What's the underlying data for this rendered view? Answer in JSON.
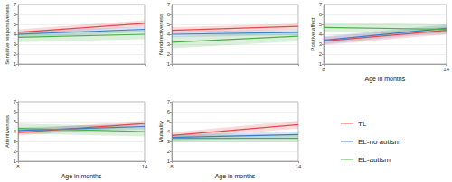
{
  "chart_data": [
    {
      "type": "line",
      "y_label": "Sensitive responsiveness",
      "x": [
        8,
        14
      ],
      "xlim": [
        8,
        14
      ],
      "xticks": [
        8,
        14
      ],
      "ylim": [
        1,
        7
      ],
      "yticks": [
        1,
        2,
        3,
        4,
        5,
        6,
        7
      ],
      "grid": true,
      "tick_labels": "y",
      "legend": "right",
      "series": [
        {
          "name": "TL",
          "color": "#e5484a",
          "values": [
            4.2,
            5.1
          ],
          "lower": [
            3.9,
            4.8
          ],
          "upper": [
            4.5,
            5.4
          ]
        },
        {
          "name": "EL-no autism",
          "color": "#3b7dc9",
          "values": [
            4.0,
            4.5
          ],
          "lower": [
            3.7,
            4.2
          ],
          "upper": [
            4.3,
            4.8
          ]
        },
        {
          "name": "EL-autism",
          "color": "#4daf4a",
          "values": [
            3.7,
            4.0
          ],
          "lower": [
            3.2,
            3.5
          ],
          "upper": [
            4.2,
            4.5
          ]
        }
      ]
    },
    {
      "type": "line",
      "y_label": "Nondirectiveness",
      "x": [
        8,
        14
      ],
      "xlim": [
        8,
        14
      ],
      "xticks": [
        8,
        14
      ],
      "ylim": [
        1,
        7
      ],
      "yticks": [
        1,
        2,
        3,
        4,
        5,
        6,
        7
      ],
      "grid": true,
      "tick_labels": "y",
      "series": [
        {
          "name": "TL",
          "color": "#e5484a",
          "values": [
            4.4,
            4.8
          ],
          "lower": [
            4.1,
            4.5
          ],
          "upper": [
            4.7,
            5.1
          ]
        },
        {
          "name": "EL-no autism",
          "color": "#3b7dc9",
          "values": [
            4.0,
            4.2
          ],
          "lower": [
            3.7,
            3.9
          ],
          "upper": [
            4.3,
            4.5
          ]
        },
        {
          "name": "EL-autism",
          "color": "#4daf4a",
          "values": [
            3.2,
            3.8
          ],
          "lower": [
            2.6,
            3.3
          ],
          "upper": [
            3.8,
            4.3
          ]
        }
      ]
    },
    {
      "type": "line",
      "y_label": "Positive affect",
      "x_label": "Age in months",
      "x": [
        8,
        14
      ],
      "xlim": [
        8,
        14
      ],
      "xticks": [
        8,
        14
      ],
      "ylim": [
        1,
        7
      ],
      "yticks": [
        1,
        2,
        3,
        4,
        5,
        6,
        7
      ],
      "grid": true,
      "series": [
        {
          "name": "TL",
          "color": "#e5484a",
          "values": [
            3.3,
            4.4
          ],
          "lower": [
            2.9,
            4.0
          ],
          "upper": [
            3.7,
            4.8
          ]
        },
        {
          "name": "EL-no autism",
          "color": "#3b7dc9",
          "values": [
            3.4,
            4.6
          ],
          "lower": [
            3.0,
            4.2
          ],
          "upper": [
            3.8,
            5.0
          ]
        },
        {
          "name": "EL-autism",
          "color": "#4daf4a",
          "values": [
            4.7,
            4.5
          ],
          "lower": [
            4.2,
            4.0
          ],
          "upper": [
            5.2,
            5.0
          ]
        }
      ]
    },
    {
      "type": "line",
      "y_label": "Attentiveness",
      "x_label": "Age in months",
      "x": [
        8,
        14
      ],
      "xlim": [
        8,
        14
      ],
      "xticks": [
        8,
        14
      ],
      "ylim": [
        1,
        7
      ],
      "yticks": [
        1,
        2,
        3,
        4,
        5,
        6,
        7
      ],
      "grid": true,
      "series": [
        {
          "name": "TL",
          "color": "#e5484a",
          "values": [
            3.9,
            4.8
          ],
          "lower": [
            3.6,
            4.5
          ],
          "upper": [
            4.2,
            5.1
          ]
        },
        {
          "name": "EL-no autism",
          "color": "#3b7dc9",
          "values": [
            4.1,
            4.5
          ],
          "lower": [
            3.8,
            4.2
          ],
          "upper": [
            4.4,
            4.8
          ]
        },
        {
          "name": "EL-autism",
          "color": "#4daf4a",
          "values": [
            4.3,
            4.0
          ],
          "lower": [
            3.8,
            3.5
          ],
          "upper": [
            4.8,
            4.5
          ]
        }
      ]
    },
    {
      "type": "line",
      "y_label": "Mutuality",
      "x_label": "Age in months",
      "x": [
        8,
        14
      ],
      "xlim": [
        8,
        14
      ],
      "xticks": [
        8,
        14
      ],
      "ylim": [
        1,
        7
      ],
      "yticks": [
        1,
        2,
        3,
        4,
        5,
        6,
        7
      ],
      "grid": true,
      "series": [
        {
          "name": "TL",
          "color": "#e5484a",
          "values": [
            3.6,
            4.7
          ],
          "lower": [
            3.3,
            4.3
          ],
          "upper": [
            3.9,
            5.1
          ]
        },
        {
          "name": "EL-no autism",
          "color": "#3b7dc9",
          "values": [
            3.4,
            3.7
          ],
          "lower": [
            3.1,
            3.4
          ],
          "upper": [
            3.7,
            4.0
          ]
        },
        {
          "name": "EL-autism",
          "color": "#4daf4a",
          "values": [
            3.3,
            3.3
          ],
          "lower": [
            2.9,
            2.9
          ],
          "upper": [
            3.7,
            3.7
          ]
        }
      ]
    }
  ]
}
